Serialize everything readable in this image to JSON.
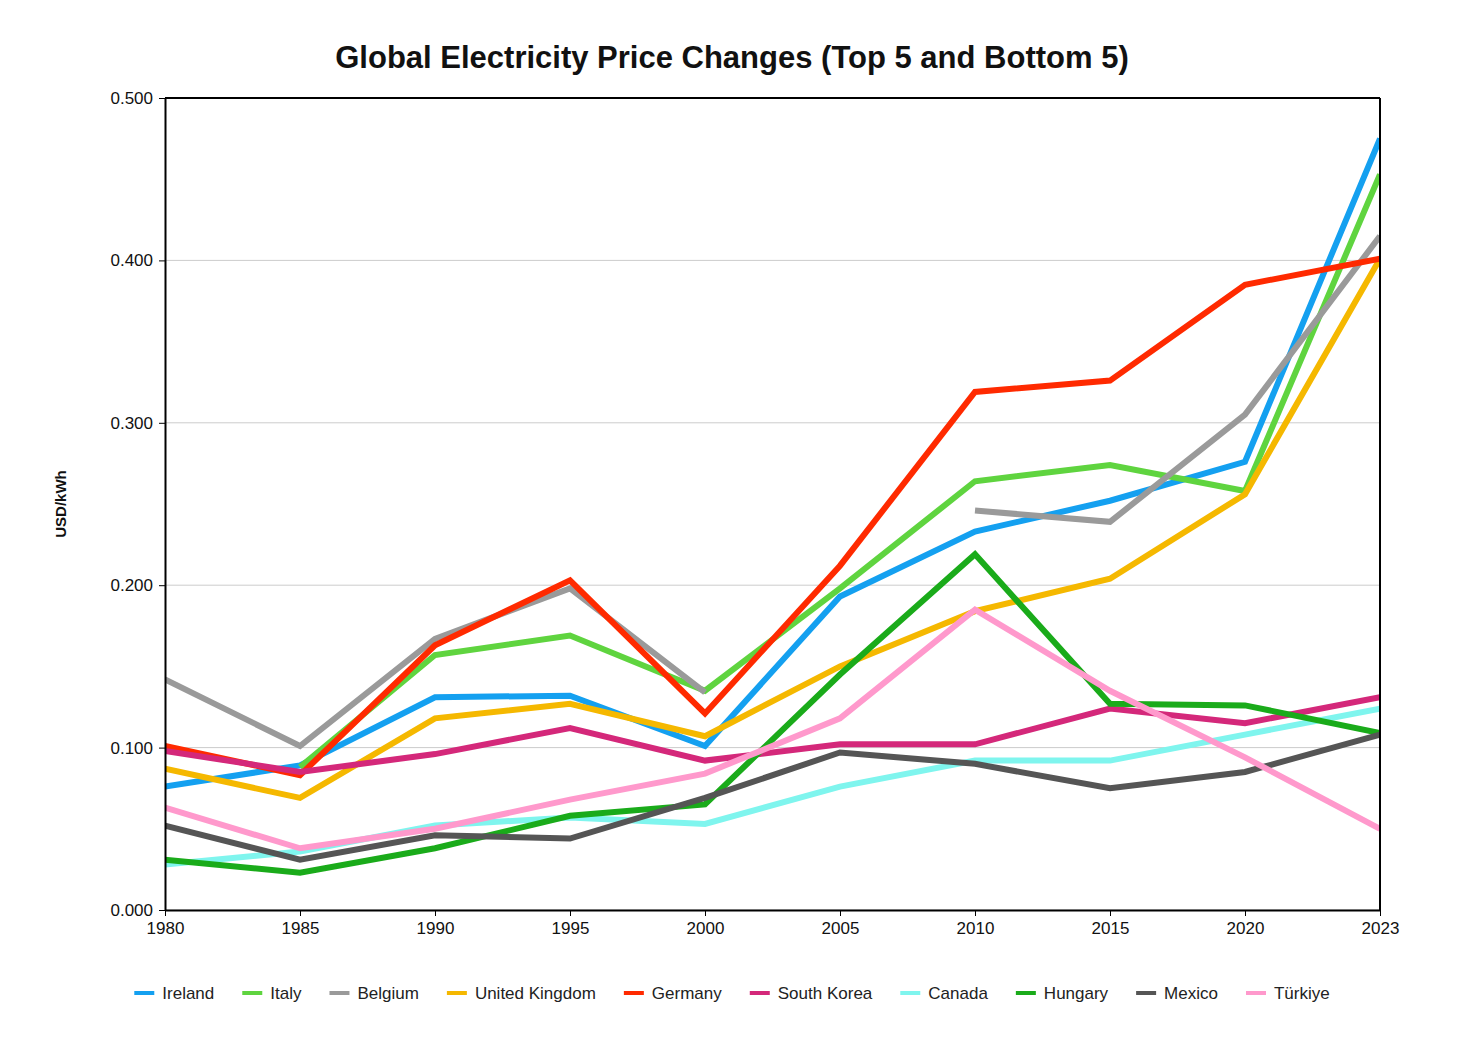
{
  "chart_data": {
    "type": "line",
    "title": "Global Electricity Price Changes (Top 5 and Bottom 5)",
    "y_label": "USD/kWh",
    "categories": [
      "1980",
      "1985",
      "1990",
      "1995",
      "2000",
      "2005",
      "2010",
      "2015",
      "2020",
      "2023"
    ],
    "ylim": [
      0,
      0.5
    ],
    "yticks": [
      {
        "value": 0,
        "label": "0.000"
      },
      {
        "value": 0.1,
        "label": "0.100"
      },
      {
        "value": 0.2,
        "label": "0.200"
      },
      {
        "value": 0.3,
        "label": "0.300"
      },
      {
        "value": 0.4,
        "label": "0.400"
      },
      {
        "value": 0.5,
        "label": "0.500"
      }
    ],
    "grid": true,
    "legend": "bottom",
    "series": [
      {
        "name": "Ireland",
        "color": "#14a0f0",
        "values": [
          0.076,
          0.089,
          0.131,
          0.132,
          0.101,
          0.193,
          0.233,
          0.252,
          0.276,
          0.475
        ]
      },
      {
        "name": "Italy",
        "color": "#5fd43f",
        "values": [
          null,
          0.088,
          0.157,
          0.169,
          0.135,
          0.198,
          0.264,
          0.274,
          0.258,
          0.453
        ]
      },
      {
        "name": "Belgium",
        "color": "#9a9a9a",
        "values": [
          0.142,
          0.101,
          0.167,
          0.198,
          0.134,
          null,
          0.246,
          0.239,
          0.305,
          0.415
        ]
      },
      {
        "name": "United Kingdom",
        "color": "#f5b800",
        "values": [
          0.087,
          0.069,
          0.118,
          0.127,
          0.107,
          0.15,
          0.184,
          0.204,
          0.256,
          0.401
        ]
      },
      {
        "name": "Germany",
        "color": "#ff2a00",
        "values": [
          0.101,
          0.083,
          0.163,
          0.203,
          0.121,
          0.212,
          0.319,
          0.326,
          0.385,
          0.401
        ]
      },
      {
        "name": "South Korea",
        "color": "#d4287a",
        "values": [
          0.098,
          0.085,
          0.096,
          0.112,
          0.092,
          0.102,
          0.102,
          0.124,
          0.115,
          0.131
        ]
      },
      {
        "name": "Canada",
        "color": "#7ff5ee",
        "values": [
          0.028,
          0.036,
          0.052,
          0.057,
          0.053,
          0.076,
          0.092,
          0.092,
          0.108,
          0.124
        ]
      },
      {
        "name": "Hungary",
        "color": "#1aab1a",
        "values": [
          0.031,
          0.023,
          0.038,
          0.058,
          0.065,
          0.145,
          0.219,
          0.127,
          0.126,
          0.109
        ]
      },
      {
        "name": "Mexico",
        "color": "#555555",
        "values": [
          0.052,
          0.031,
          0.046,
          0.044,
          0.069,
          0.097,
          0.09,
          0.075,
          0.085,
          0.108
        ]
      },
      {
        "name": "Türkiye",
        "color": "#ff99cc",
        "values": [
          0.063,
          0.038,
          0.05,
          0.068,
          0.084,
          0.118,
          0.185,
          0.135,
          0.094,
          0.05
        ]
      }
    ]
  }
}
